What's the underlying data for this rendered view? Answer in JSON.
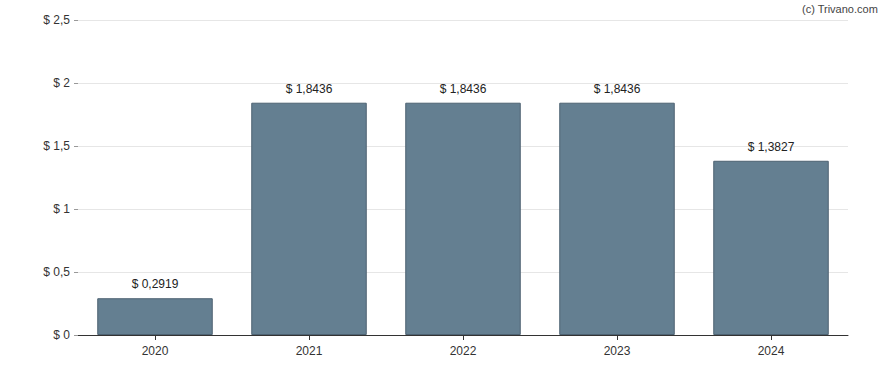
{
  "chart_data": {
    "type": "bar",
    "categories": [
      "2020",
      "2021",
      "2022",
      "2023",
      "2024"
    ],
    "values": [
      0.2919,
      1.8436,
      1.8436,
      1.8436,
      1.3827
    ],
    "value_labels": [
      "$ 0,2919",
      "$ 1,8436",
      "$ 1,8436",
      "$ 1,8436",
      "$ 1,3827"
    ],
    "data_labels": true,
    "color": "#647f91",
    "ylim": [
      0,
      2.5
    ],
    "yticks": [
      {
        "value": 0,
        "label": "$ 0"
      },
      {
        "value": 0.5,
        "label": "$ 0,5"
      },
      {
        "value": 1,
        "label": "$ 1"
      },
      {
        "value": 1.5,
        "label": "$ 1,5"
      },
      {
        "value": 2,
        "label": "$ 2"
      },
      {
        "value": 2.5,
        "label": "$ 2,5"
      }
    ],
    "grid": true,
    "annotations": [
      "(c) Trivano.com"
    ]
  }
}
